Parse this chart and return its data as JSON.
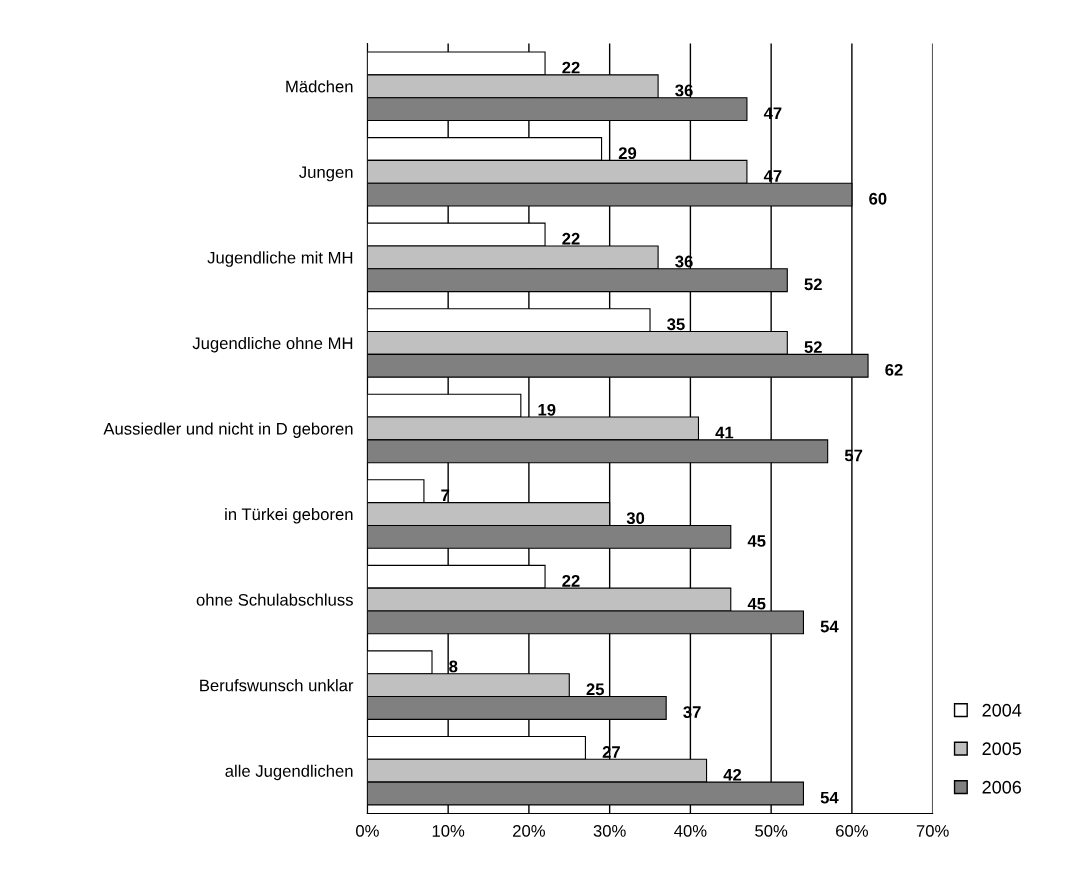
{
  "chart_data": {
    "type": "bar",
    "orientation": "horizontal",
    "categories": [
      "Mädchen",
      "Jungen",
      "Jugendliche mit MH",
      "Jugendliche ohne MH",
      "Aussiedler und nicht in D geboren",
      "in Türkei geboren",
      "ohne Schulabschluss",
      "Berufswunsch unklar",
      "alle Jugendlichen"
    ],
    "series": [
      {
        "name": "2004",
        "color": "#ffffff",
        "values": [
          22,
          29,
          22,
          35,
          19,
          7,
          22,
          8,
          27
        ]
      },
      {
        "name": "2005",
        "color": "#c0c0c0",
        "values": [
          36,
          47,
          36,
          52,
          41,
          30,
          45,
          25,
          42
        ]
      },
      {
        "name": "2006",
        "color": "#808080",
        "values": [
          47,
          60,
          52,
          62,
          57,
          45,
          54,
          37,
          54
        ]
      }
    ],
    "xlim": [
      0,
      70
    ],
    "xticks": [
      {
        "value": 0,
        "label": "0%"
      },
      {
        "value": 10,
        "label": "10%"
      },
      {
        "value": 20,
        "label": "20%"
      },
      {
        "value": 30,
        "label": "30%"
      },
      {
        "value": 40,
        "label": "40%"
      },
      {
        "value": 50,
        "label": "50%"
      },
      {
        "value": 60,
        "label": "60%"
      },
      {
        "value": 70,
        "label": "70%"
      }
    ],
    "grid": "x",
    "legend": "bottom right",
    "data_labels": true
  }
}
